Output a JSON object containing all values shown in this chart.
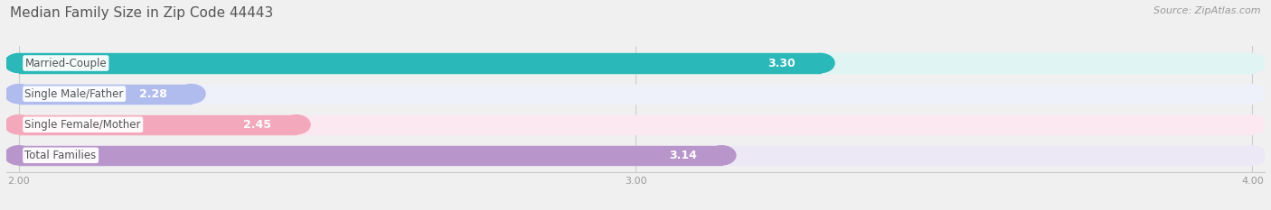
{
  "title": "Median Family Size in Zip Code 44443",
  "source": "Source: ZipAtlas.com",
  "categories": [
    "Married-Couple",
    "Single Male/Father",
    "Single Female/Mother",
    "Total Families"
  ],
  "values": [
    3.3,
    2.28,
    2.45,
    3.14
  ],
  "bar_colors": [
    "#2ab8b8",
    "#b0bcee",
    "#f4a8bc",
    "#b896cc"
  ],
  "bar_bg_colors": [
    "#e0f4f4",
    "#eef0fa",
    "#fce8f0",
    "#ece8f5"
  ],
  "xmin": 2.0,
  "xmax": 4.0,
  "xticks": [
    2.0,
    3.0,
    4.0
  ],
  "xtick_labels": [
    "2.00",
    "3.00",
    "4.00"
  ],
  "background_color": "#f0f0f0",
  "title_fontsize": 11,
  "source_fontsize": 8,
  "bar_label_fontsize": 9,
  "category_fontsize": 8.5,
  "tick_fontsize": 8
}
